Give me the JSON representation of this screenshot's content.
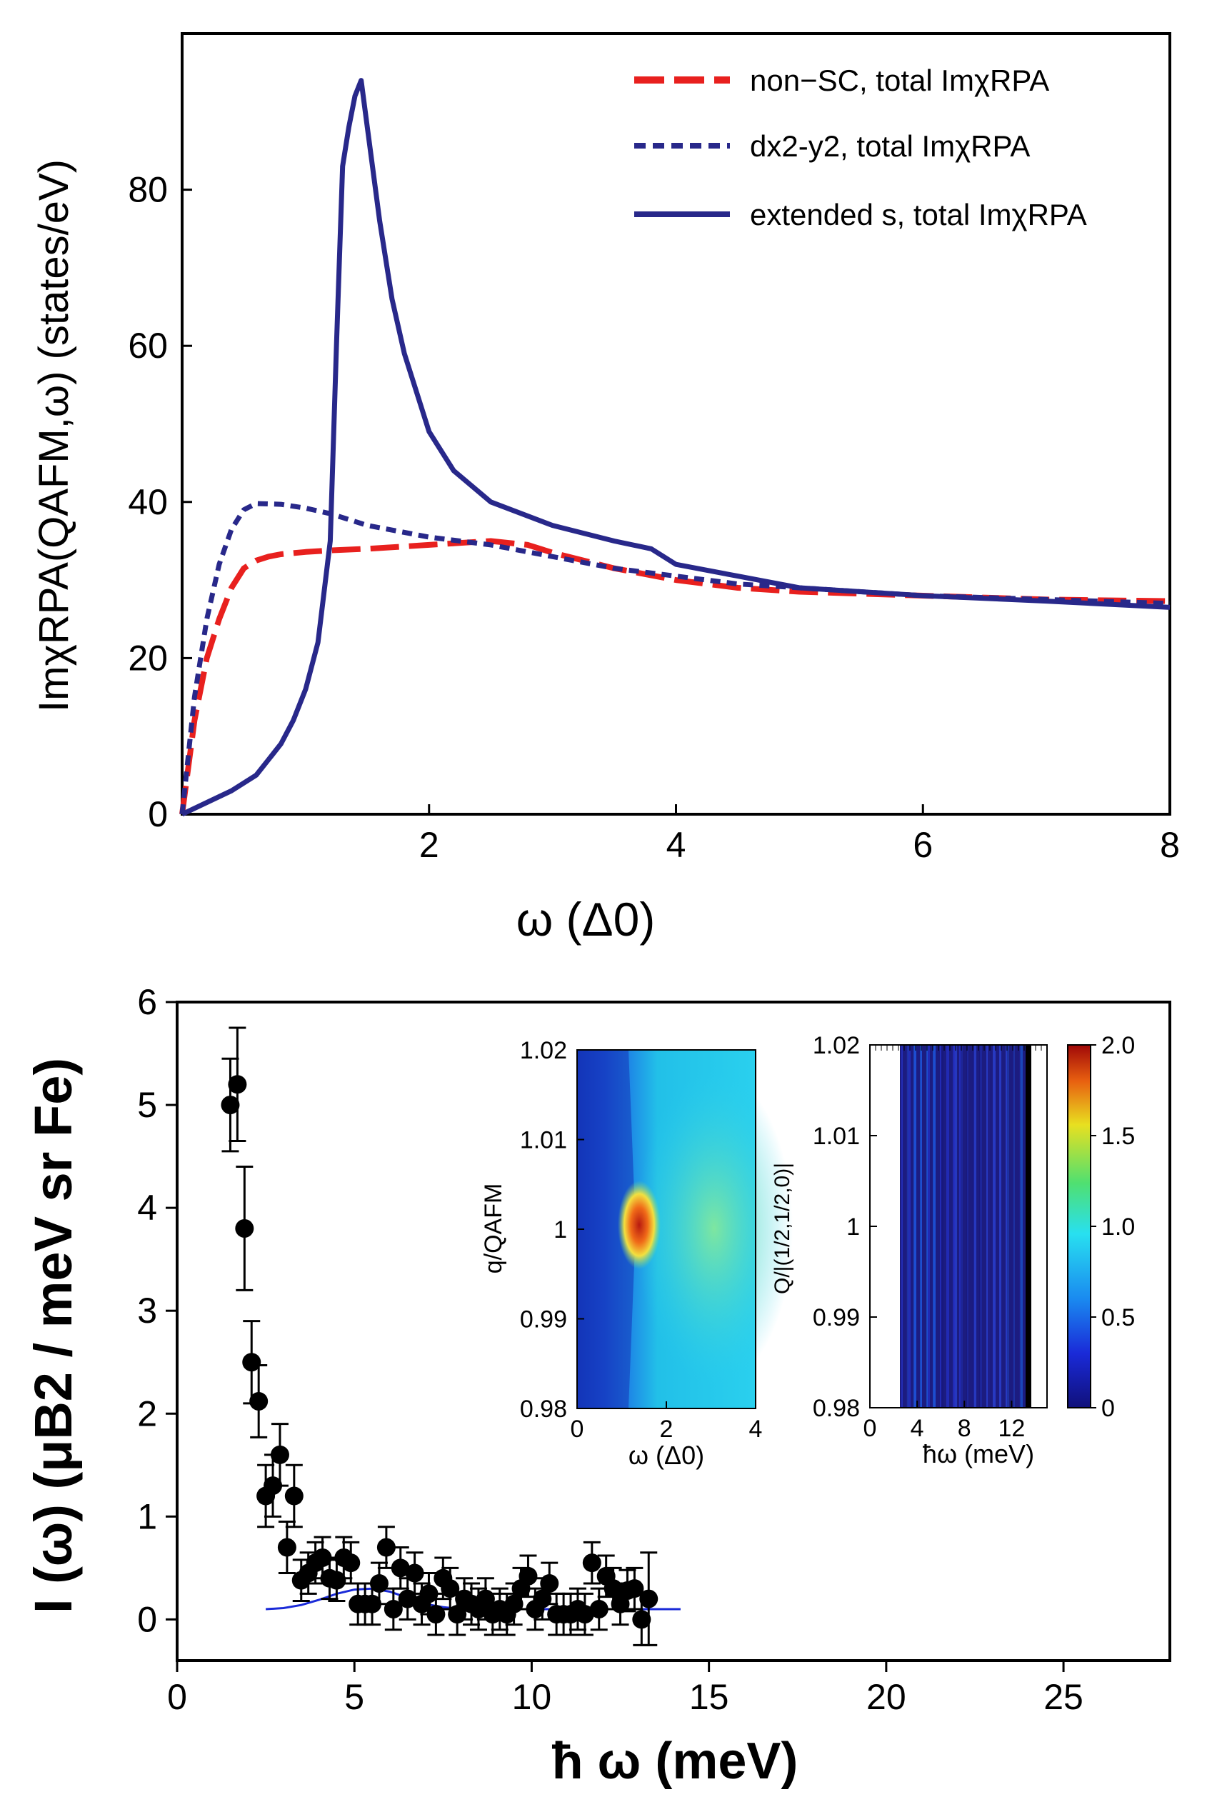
{
  "chart_data": [
    {
      "type": "line",
      "title": "",
      "xlabel": "ω (Δ0)",
      "ylabel": "ImχRPA(QAFM,ω) (states/eV)",
      "xlim": [
        0,
        8
      ],
      "ylim": [
        0,
        100
      ],
      "xticks": [
        "2",
        "4",
        "6",
        "8"
      ],
      "yticks": [
        "0",
        "20",
        "40",
        "60",
        "80"
      ],
      "legend_position": "top-right",
      "series": [
        {
          "name": "non−SC, total ImχRPA",
          "color": "#e8201e",
          "style": "dashed",
          "x": [
            0,
            0.1,
            0.2,
            0.3,
            0.4,
            0.5,
            0.6,
            0.7,
            0.8,
            1.0,
            1.2,
            1.5,
            2.0,
            2.5,
            2.8,
            3.0,
            3.5,
            4.0,
            4.5,
            5.0,
            6.0,
            7.0,
            8.0
          ],
          "y": [
            0,
            12,
            20,
            25,
            29,
            31.5,
            32.5,
            33,
            33.3,
            33.6,
            33.8,
            34,
            34.5,
            35,
            34.5,
            33.5,
            31.5,
            30,
            29,
            28.5,
            28,
            27.5,
            27.3
          ]
        },
        {
          "name": "dx2-y2, total ImχRPA",
          "color": "#28288a",
          "style": "dotted",
          "x": [
            0,
            0.1,
            0.2,
            0.3,
            0.4,
            0.5,
            0.6,
            0.8,
            1.0,
            1.2,
            1.5,
            2.0,
            2.5,
            3.0,
            3.5,
            4.0,
            4.5,
            5.0,
            6.0,
            7.0,
            8.0
          ],
          "y": [
            0,
            15,
            25,
            32,
            36.5,
            39,
            39.8,
            39.7,
            39.2,
            38.5,
            37,
            35.5,
            34.5,
            33,
            31.5,
            30.5,
            29.5,
            29,
            28,
            27.5,
            27
          ]
        },
        {
          "name": "extended s, total ImχRPA",
          "color": "#28288a",
          "style": "solid",
          "x": [
            0,
            0.2,
            0.4,
            0.6,
            0.7,
            0.8,
            0.9,
            1.0,
            1.1,
            1.2,
            1.25,
            1.3,
            1.35,
            1.4,
            1.45,
            1.5,
            1.6,
            1.7,
            1.8,
            2.0,
            2.2,
            2.5,
            3.0,
            3.5,
            3.8,
            4.0,
            4.5,
            5.0,
            6.0,
            7.0,
            8.0
          ],
          "y": [
            0,
            1.5,
            3,
            5,
            7,
            9,
            12,
            16,
            22,
            35,
            60,
            83,
            88,
            92,
            94,
            88,
            76,
            66,
            59,
            49,
            44,
            40,
            37,
            35,
            34,
            32,
            30.5,
            29,
            28,
            27.3,
            26.5
          ]
        }
      ]
    },
    {
      "type": "scatter",
      "title": "",
      "xlabel": "ħ ω (meV)",
      "ylabel": "I (ω) (μB2 / meV sr Fe)",
      "xlim": [
        0,
        28
      ],
      "ylim": [
        -0.4,
        6
      ],
      "xticks": [
        "0",
        "5",
        "10",
        "15",
        "20",
        "25"
      ],
      "yticks": [
        "0",
        "1",
        "2",
        "3",
        "4",
        "5",
        "6"
      ],
      "series": [
        {
          "name": "data",
          "color": "#000000",
          "x": [
            1.5,
            1.7,
            1.9,
            2.1,
            2.3,
            2.5,
            2.7,
            2.9,
            3.1,
            3.3,
            3.5,
            3.7,
            3.9,
            4.1,
            4.3,
            4.5,
            4.7,
            4.9,
            5.1,
            5.3,
            5.5,
            5.7,
            5.9,
            6.1,
            6.3,
            6.5,
            6.7,
            6.9,
            7.1,
            7.3,
            7.5,
            7.7,
            7.9,
            8.1,
            8.3,
            8.5,
            8.7,
            8.9,
            9.1,
            9.3,
            9.5,
            9.7,
            9.9,
            10.1,
            10.3,
            10.5,
            10.7,
            10.9,
            11.1,
            11.3,
            11.5,
            11.7,
            11.9,
            12.1,
            12.3,
            12.5,
            12.7,
            12.9,
            13.1,
            13.3
          ],
          "y": [
            5.0,
            5.2,
            3.8,
            2.5,
            2.12,
            1.2,
            1.3,
            1.6,
            0.7,
            1.2,
            0.38,
            0.45,
            0.55,
            0.6,
            0.4,
            0.38,
            0.6,
            0.55,
            0.15,
            0.15,
            0.15,
            0.35,
            0.7,
            0.1,
            0.5,
            0.2,
            0.45,
            0.15,
            0.25,
            0.05,
            0.4,
            0.3,
            0.05,
            0.2,
            0.15,
            0.1,
            0.2,
            0.05,
            0.1,
            0.05,
            0.15,
            0.3,
            0.42,
            0.1,
            0.2,
            0.35,
            0.05,
            0.05,
            0.05,
            0.1,
            0.05,
            0.55,
            0.1,
            0.42,
            0.3,
            0.15,
            0.28,
            0.3,
            0.0,
            0.2
          ],
          "err": [
            0.45,
            0.55,
            0.6,
            0.4,
            0.35,
            0.3,
            0.3,
            0.3,
            0.25,
            0.3,
            0.2,
            0.2,
            0.2,
            0.2,
            0.2,
            0.2,
            0.2,
            0.2,
            0.2,
            0.2,
            0.2,
            0.2,
            0.2,
            0.2,
            0.2,
            0.2,
            0.2,
            0.2,
            0.2,
            0.2,
            0.2,
            0.2,
            0.2,
            0.2,
            0.2,
            0.2,
            0.2,
            0.2,
            0.2,
            0.2,
            0.2,
            0.2,
            0.2,
            0.2,
            0.2,
            0.2,
            0.2,
            0.2,
            0.2,
            0.2,
            0.2,
            0.2,
            0.2,
            0.2,
            0.2,
            0.2,
            0.2,
            0.2,
            0.25,
            0.45
          ]
        },
        {
          "name": "fit",
          "color": "#1a2ad8",
          "style": "solid",
          "x": [
            2.5,
            3.0,
            3.5,
            4.0,
            4.5,
            5.0,
            5.5,
            6.0,
            6.5,
            7.0,
            7.5,
            8.0,
            9.0,
            10.0,
            12.0,
            14.2
          ],
          "y": [
            0.1,
            0.11,
            0.14,
            0.19,
            0.25,
            0.29,
            0.3,
            0.27,
            0.21,
            0.15,
            0.12,
            0.1,
            0.1,
            0.1,
            0.1,
            0.1
          ]
        }
      ]
    },
    {
      "type": "heatmap",
      "xlabel": "ω (Δ0)",
      "ylabel": "q/QAFM",
      "xlim": [
        0,
        4
      ],
      "ylim": [
        0.98,
        1.02
      ],
      "xticks": [
        "0",
        "2",
        "4"
      ],
      "yticks": [
        "0.98",
        "0.99",
        "1",
        "1.01",
        "1.02"
      ]
    },
    {
      "type": "heatmap",
      "xlabel": "ħω (meV)",
      "ylabel": "Q/|(1/2,1/2,0)|",
      "xlim": [
        0,
        15
      ],
      "ylim": [
        0.98,
        1.02
      ],
      "xticks": [
        "0",
        "4",
        "8",
        "12"
      ],
      "yticks": [
        "0.98",
        "0.99",
        "1",
        "1.01",
        "1.02"
      ],
      "colorbar": {
        "range": [
          0,
          2.0
        ],
        "ticks": [
          "0",
          "0.5",
          "1.0",
          "1.5",
          "2.0"
        ]
      }
    }
  ]
}
